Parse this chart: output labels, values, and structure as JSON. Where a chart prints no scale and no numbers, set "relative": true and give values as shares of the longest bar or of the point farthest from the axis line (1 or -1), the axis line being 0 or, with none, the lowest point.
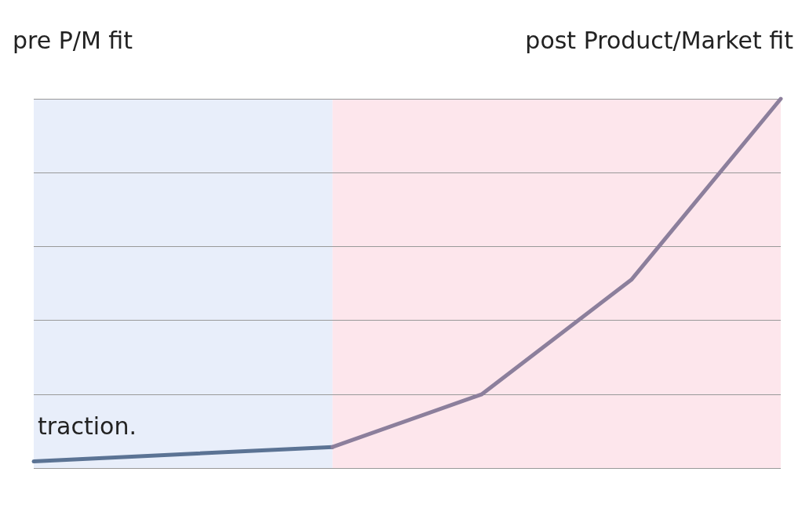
{
  "chart_data": {
    "type": "line",
    "relative": true,
    "categories": [
      null,
      null,
      null,
      null,
      null,
      null
    ],
    "series": [
      {
        "color": "#5b7394",
        "values": [
          0.018,
          null,
          0.057,
          null,
          null,
          null
        ]
      },
      {
        "color": "#8c7f9c",
        "values": [
          null,
          null,
          0.057,
          0.2,
          0.51,
          1.0
        ]
      }
    ],
    "annotations": [
      "pre P/M fit",
      "post Product/Market fit",
      "traction."
    ],
    "grid": "y",
    "marker": "none",
    "line_style": "solid"
  }
}
